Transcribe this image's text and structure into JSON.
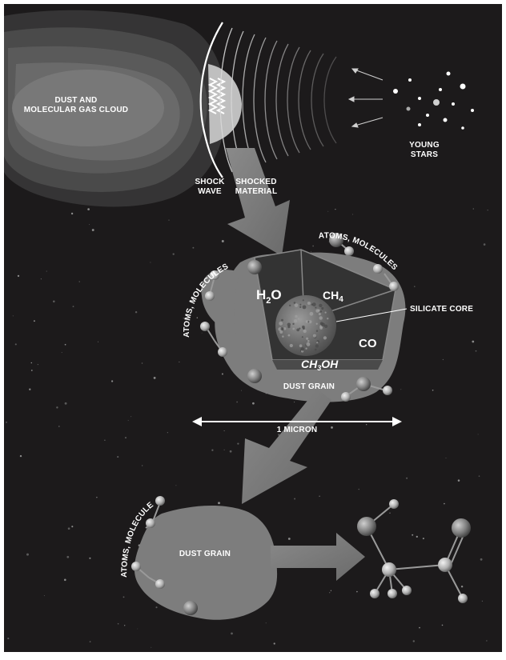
{
  "labels": {
    "cloud_line1": "DUST AND",
    "cloud_line2": "MOLECULAR GAS CLOUD",
    "young_stars_line1": "YOUNG",
    "young_stars_line2": "STARS",
    "shock_wave_line1": "SHOCK",
    "shock_wave_line2": "WAVE",
    "shocked_material_line1": "SHOCKED",
    "shocked_material_line2": "MATERIAL",
    "atoms_molecules_top": "ATOMS, MOLECULES",
    "atoms_molecules_left": "ATOMS, MOLECULES",
    "atoms_molecules_bottom": "ATOMS, MOLECULES",
    "h2o": "H",
    "h2o_sub": "2",
    "h2o_tail": "O",
    "ch4": "CH",
    "ch4_sub": "4",
    "co": "CO",
    "ch3oh": "CH",
    "ch3oh_sub": "3",
    "ch3oh_tail": "OH",
    "silicate_core": "SILICATE CORE",
    "dust_grain_top": "DUST GRAIN",
    "dust_grain_bottom": "DUST GRAIN",
    "scale": "1 MICRON"
  },
  "colors": {
    "background": "#1c1a1b",
    "frame": "#ffffff",
    "arrow": "#7a7a7a",
    "grain": "#7d7d7d",
    "ice": "#3a3a3a",
    "core": "#6e6e6e",
    "atom": "#b5b5b5"
  }
}
